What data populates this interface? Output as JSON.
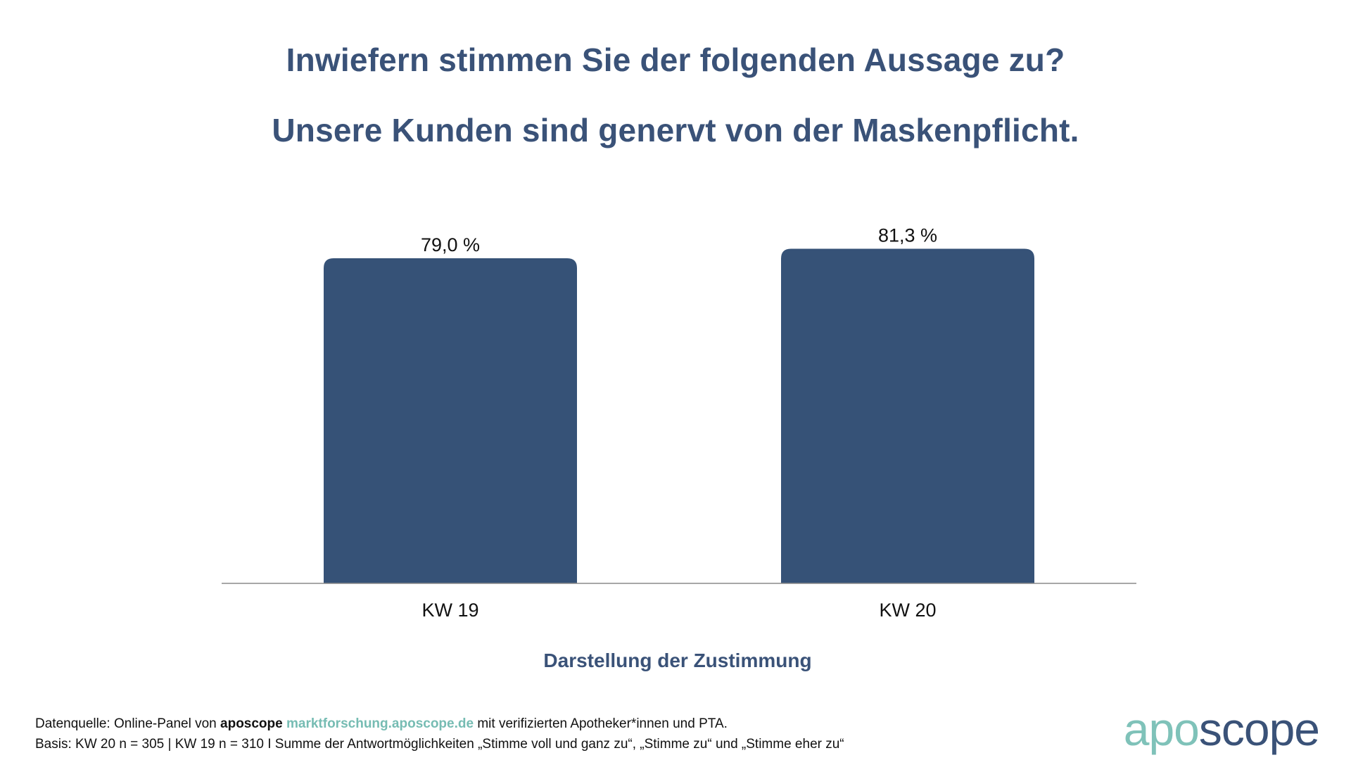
{
  "chart_data": {
    "type": "bar",
    "title": "Inwiefern stimmen Sie der folgenden Aussage zu?",
    "subtitle": "Unsere Kunden sind genervt von der Maskenpflicht.",
    "categories": [
      "KW 19",
      "KW 20"
    ],
    "values": [
      79.0,
      81.3
    ],
    "value_labels": [
      "79,0 %",
      "81,3 %"
    ],
    "xlabel": "Darstellung der Zustimmung",
    "ylabel": "",
    "ylim": [
      0,
      100
    ],
    "grid": false,
    "bar_color": "#365277"
  },
  "footer": {
    "source_prefix": "Datenquelle: Online-Panel von ",
    "source_brand": "aposcope",
    "source_link": "marktforschung.aposcope.de",
    "source_suffix": " mit verifizierten Apotheker*innen und PTA.",
    "basis": "Basis: KW 20 n = 305 | KW 19 n = 310 I Summe der Antwortmöglichkeiten „Stimme voll und ganz zu“, „Stimme zu“ und „Stimme eher zu“"
  },
  "logo": {
    "part1": "apo",
    "part2": "scope"
  },
  "colors": {
    "title": "#3a5278",
    "accent": "#76bcb3"
  }
}
